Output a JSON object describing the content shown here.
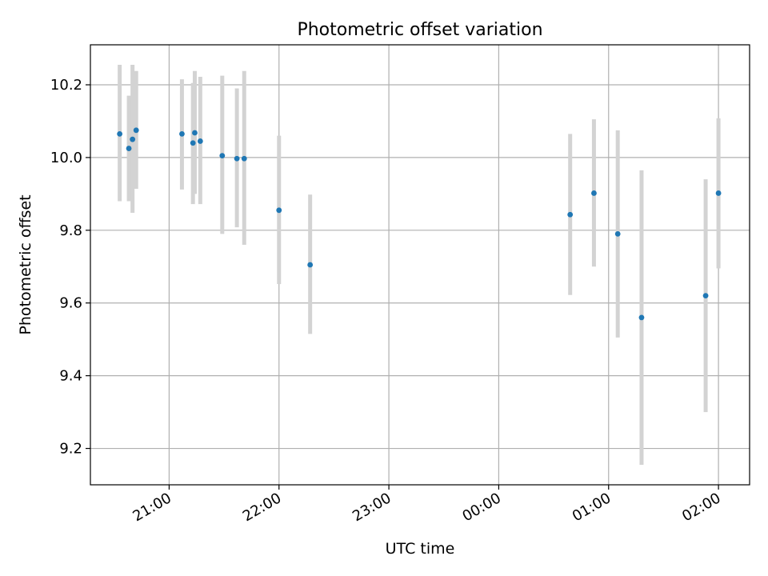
{
  "chart_data": {
    "type": "scatter",
    "title": "Photometric offset variation",
    "xlabel": "UTC time",
    "ylabel": "Photometric offset",
    "grid": true,
    "legend": "none",
    "xticks": [
      "21:00",
      "22:00",
      "23:00",
      "00:00",
      "01:00",
      "02:00"
    ],
    "yticks": [
      "9.2",
      "9.4",
      "9.6",
      "9.8",
      "10.0",
      "10.2"
    ],
    "ylim": [
      9.1,
      10.31
    ],
    "xlim": [
      "20:17",
      "02:17"
    ],
    "colors": {
      "point": "#1f77b4",
      "errorbar": "#d3d3d3",
      "grid": "#b0b0b0"
    },
    "series": [
      {
        "x": [
          "20:33",
          "20:38",
          "20:40",
          "20:42",
          "21:07",
          "21:13",
          "21:14",
          "21:17",
          "21:29",
          "21:37",
          "21:41",
          "22:00",
          "22:17",
          "00:39",
          "00:52",
          "01:05",
          "01:18",
          "01:53",
          "02:00"
        ],
        "y": [
          10.065,
          10.025,
          10.05,
          10.075,
          10.065,
          10.04,
          10.068,
          10.045,
          10.005,
          9.997,
          9.997,
          9.855,
          9.705,
          9.843,
          9.902,
          9.79,
          9.56,
          9.62,
          9.902
        ],
        "yerr_low": [
          9.88,
          9.88,
          9.848,
          9.914,
          9.912,
          9.872,
          9.9,
          9.872,
          9.79,
          9.808,
          9.76,
          9.652,
          9.515,
          9.622,
          9.7,
          9.505,
          9.155,
          9.3,
          9.695
        ],
        "yerr_high": [
          10.255,
          10.17,
          10.255,
          10.238,
          10.215,
          10.205,
          10.238,
          10.222,
          10.225,
          10.19,
          10.238,
          10.06,
          9.898,
          10.065,
          10.105,
          10.075,
          9.965,
          9.94,
          10.108
        ]
      }
    ]
  }
}
